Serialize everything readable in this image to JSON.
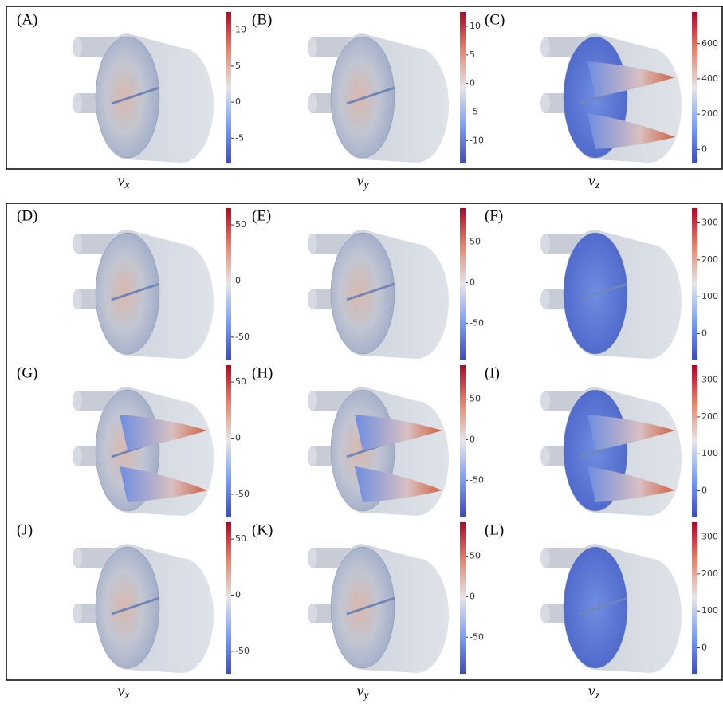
{
  "figure": {
    "top": {
      "panels": [
        {
          "label": "(A)",
          "colorbar": {
            "clim": [
              -8.5,
              12.5
            ],
            "ticks": [
              10,
              5,
              0,
              -5
            ]
          }
        },
        {
          "label": "(B)",
          "colorbar": {
            "clim": [
              -14,
              12.5
            ],
            "ticks": [
              10,
              5,
              0,
              -5,
              -10
            ]
          }
        },
        {
          "label": "(C)",
          "colorbar": {
            "clim": [
              -80,
              780
            ],
            "ticks": [
              600,
              400,
              200,
              0
            ]
          }
        }
      ],
      "column_labels": [
        {
          "base": "v",
          "sub": "x"
        },
        {
          "base": "v",
          "sub": "y"
        },
        {
          "base": "v",
          "sub": "z"
        }
      ]
    },
    "bottom": {
      "panels": [
        {
          "label": "(D)",
          "colorbar": {
            "clim": [
              -70,
              65
            ],
            "ticks": [
              50,
              0,
              -50
            ]
          }
        },
        {
          "label": "(E)",
          "colorbar": {
            "clim": [
              -95,
              92
            ],
            "ticks": [
              50,
              0,
              -50
            ]
          }
        },
        {
          "label": "(F)",
          "colorbar": {
            "clim": [
              -70,
              340
            ],
            "ticks": [
              300,
              200,
              100,
              0
            ]
          }
        },
        {
          "label": "(G)",
          "colorbar": {
            "clim": [
              -70,
              65
            ],
            "ticks": [
              50,
              0,
              -50
            ]
          }
        },
        {
          "label": "(H)",
          "colorbar": {
            "clim": [
              -95,
              92
            ],
            "ticks": [
              50,
              0,
              -50
            ]
          }
        },
        {
          "label": "(I)",
          "colorbar": {
            "clim": [
              -70,
              340
            ],
            "ticks": [
              300,
              200,
              100,
              0
            ]
          }
        },
        {
          "label": "(J)",
          "colorbar": {
            "clim": [
              -70,
              65
            ],
            "ticks": [
              50,
              0,
              -50
            ]
          }
        },
        {
          "label": "(K)",
          "colorbar": {
            "clim": [
              -95,
              92
            ],
            "ticks": [
              50,
              0,
              -50
            ]
          }
        },
        {
          "label": "(L)",
          "colorbar": {
            "clim": [
              -70,
              340
            ],
            "ticks": [
              300,
              200,
              100,
              0
            ]
          }
        }
      ],
      "column_labels": [
        {
          "base": "v",
          "sub": "x"
        },
        {
          "base": "v",
          "sub": "y"
        },
        {
          "base": "v",
          "sub": "z"
        }
      ]
    }
  }
}
